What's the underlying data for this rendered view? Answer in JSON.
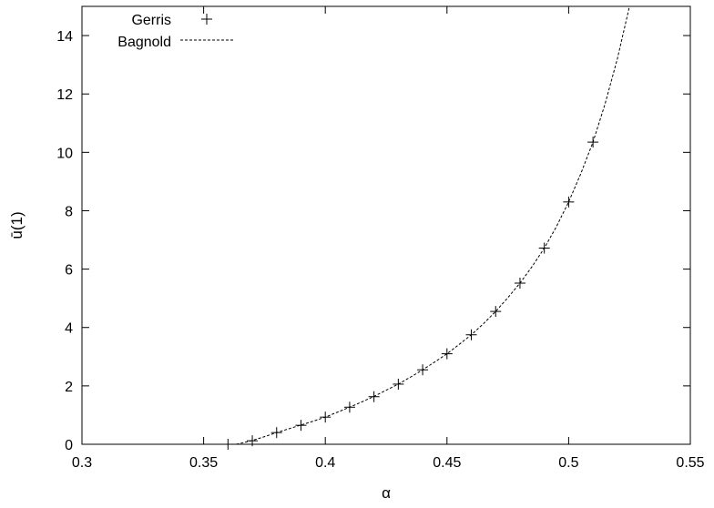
{
  "chart_data": {
    "type": "scatter",
    "xlabel": "α",
    "ylabel": "ū(1)",
    "xlim": [
      0.3,
      0.55
    ],
    "ylim": [
      0,
      15
    ],
    "xticks": [
      0.3,
      0.35,
      0.4,
      0.45,
      0.5,
      0.55
    ],
    "xtick_labels": [
      "0.3",
      "0.35",
      "0.4",
      "0.45",
      "0.5",
      "0.55"
    ],
    "yticks": [
      0,
      2,
      4,
      6,
      8,
      10,
      12,
      14
    ],
    "ytick_labels": [
      "0",
      "2",
      "4",
      "6",
      "8",
      "10",
      "12",
      "14"
    ],
    "grid": false,
    "legend_position": "top-left",
    "series": [
      {
        "name": "Gerris",
        "type": "scatter",
        "marker": "plus",
        "x": [
          0.36,
          0.37,
          0.38,
          0.39,
          0.4,
          0.41,
          0.42,
          0.43,
          0.44,
          0.45,
          0.46,
          0.47,
          0.48,
          0.49,
          0.5,
          0.51
        ],
        "y": [
          0.0,
          0.12,
          0.4,
          0.65,
          0.93,
          1.27,
          1.63,
          2.06,
          2.55,
          3.1,
          3.75,
          4.55,
          5.52,
          6.72,
          8.3,
          10.35
        ]
      },
      {
        "name": "Bagnold",
        "type": "line",
        "style": "dashed",
        "x": [
          0.3634,
          0.365,
          0.37,
          0.375,
          0.38,
          0.385,
          0.39,
          0.395,
          0.4,
          0.405,
          0.41,
          0.415,
          0.42,
          0.425,
          0.43,
          0.435,
          0.44,
          0.445,
          0.45,
          0.455,
          0.46,
          0.465,
          0.47,
          0.475,
          0.48,
          0.485,
          0.49,
          0.495,
          0.5,
          0.505,
          0.51,
          0.515,
          0.52,
          0.525
        ],
        "y": [
          0.0,
          0.03,
          0.13,
          0.26,
          0.4,
          0.53,
          0.66,
          0.79,
          0.93,
          1.1,
          1.27,
          1.45,
          1.64,
          1.85,
          2.06,
          2.3,
          2.55,
          2.82,
          3.1,
          3.42,
          3.75,
          4.13,
          4.55,
          5.02,
          5.52,
          6.09,
          6.72,
          7.46,
          8.3,
          9.27,
          10.35,
          11.67,
          13.2,
          15.0
        ]
      }
    ]
  }
}
